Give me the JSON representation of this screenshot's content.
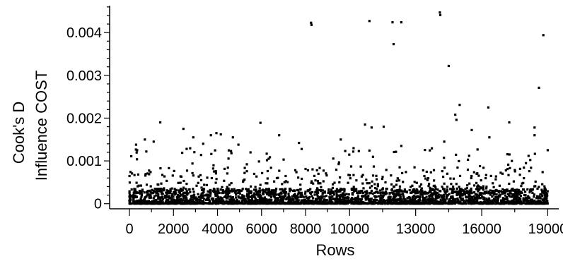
{
  "chart_data": {
    "type": "scatter",
    "title": "",
    "ylabel_line1": "Cook's D",
    "ylabel_line2": "Influence COST",
    "xlabel": "Rows",
    "xlim": [
      -900,
      19500
    ],
    "ylim": [
      -0.00012,
      0.00463
    ],
    "x_ticks": [
      {
        "value": 0,
        "label": "0"
      },
      {
        "value": 2000,
        "label": "2000"
      },
      {
        "value": 4000,
        "label": "4000"
      },
      {
        "value": 6000,
        "label": "6000"
      },
      {
        "value": 8000,
        "label": "8000"
      },
      {
        "value": 10000,
        "label": "10000"
      },
      {
        "value": 13000,
        "label": "13000"
      },
      {
        "value": 16000,
        "label": "16000"
      },
      {
        "value": 19000,
        "label": "19000"
      }
    ],
    "y_ticks": [
      {
        "value": 0,
        "label": "0"
      },
      {
        "value": 0.001,
        "label": "0.001"
      },
      {
        "value": 0.002,
        "label": "0.002"
      },
      {
        "value": 0.003,
        "label": "0.003"
      },
      {
        "value": 0.004,
        "label": "0.004"
      }
    ],
    "point_color": "#000000",
    "notable_points": [
      {
        "x": 8250,
        "y": 0.00423
      },
      {
        "x": 8270,
        "y": 0.00418
      },
      {
        "x": 10900,
        "y": 0.00427
      },
      {
        "x": 11950,
        "y": 0.00424
      },
      {
        "x": 12350,
        "y": 0.00424
      },
      {
        "x": 12000,
        "y": 0.00373
      },
      {
        "x": 14100,
        "y": 0.00447
      },
      {
        "x": 14120,
        "y": 0.00441
      },
      {
        "x": 14500,
        "y": 0.00322
      },
      {
        "x": 18800,
        "y": 0.00394
      },
      {
        "x": 18600,
        "y": 0.00271
      },
      {
        "x": 15000,
        "y": 0.00231
      },
      {
        "x": 16300,
        "y": 0.00225
      },
      {
        "x": 14800,
        "y": 0.00208
      },
      {
        "x": 14850,
        "y": 0.00196
      },
      {
        "x": 1400,
        "y": 0.0019
      },
      {
        "x": 5950,
        "y": 0.00189
      },
      {
        "x": 10700,
        "y": 0.00185
      },
      {
        "x": 17250,
        "y": 0.0019
      },
      {
        "x": 11550,
        "y": 0.0018
      },
      {
        "x": 11000,
        "y": 0.00178
      },
      {
        "x": 18400,
        "y": 0.00178
      },
      {
        "x": 15550,
        "y": 0.00172
      },
      {
        "x": 2450,
        "y": 0.00175
      },
      {
        "x": 3950,
        "y": 0.00165
      },
      {
        "x": 4150,
        "y": 0.00162
      },
      {
        "x": 6800,
        "y": 0.0016
      },
      {
        "x": 3700,
        "y": 0.0016
      },
      {
        "x": 4700,
        "y": 0.00155
      },
      {
        "x": 2900,
        "y": 0.00155
      },
      {
        "x": 12350,
        "y": 0.00135
      },
      {
        "x": 300,
        "y": 0.00138
      },
      {
        "x": 700,
        "y": 0.0015
      },
      {
        "x": 1100,
        "y": 0.00145
      },
      {
        "x": 7700,
        "y": 0.00142
      },
      {
        "x": 9600,
        "y": 0.0015
      },
      {
        "x": 16350,
        "y": 0.00155
      },
      {
        "x": 18400,
        "y": 0.0016
      },
      {
        "x": 14300,
        "y": 0.00145
      },
      {
        "x": 3350,
        "y": 0.0014
      },
      {
        "x": 4950,
        "y": 0.00138
      },
      {
        "x": 350,
        "y": 0.00125
      },
      {
        "x": 5500,
        "y": 0.0012
      },
      {
        "x": 10900,
        "y": 0.00124
      },
      {
        "x": 19000,
        "y": 0.00125
      },
      {
        "x": 2600,
        "y": 0.00128
      },
      {
        "x": 9800,
        "y": 0.00123
      }
    ],
    "dense_band": {
      "x_range": [
        0,
        19000
      ],
      "y_range": [
        0,
        0.00035
      ],
      "approx_count": 19000
    }
  }
}
